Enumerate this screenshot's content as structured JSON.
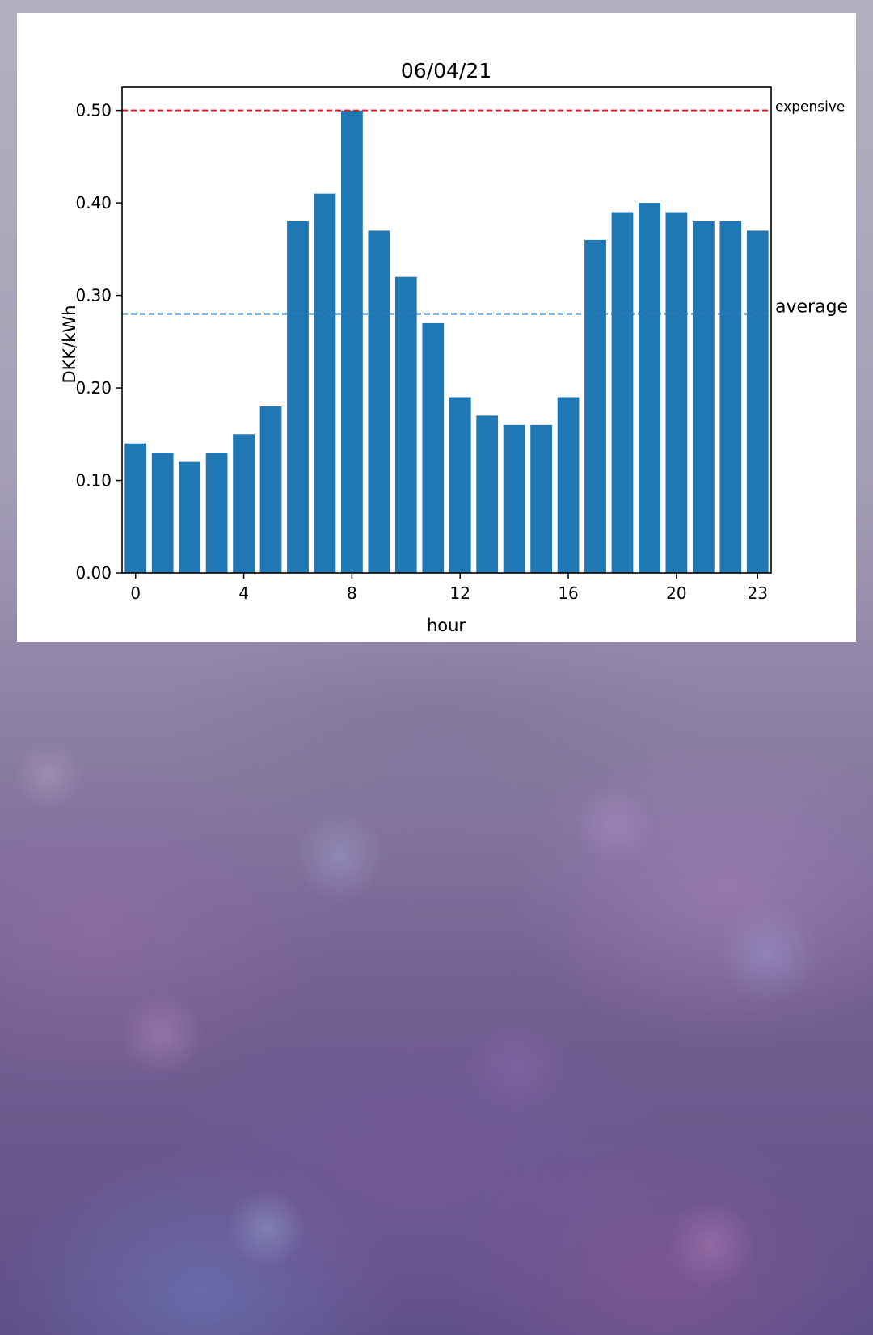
{
  "chart_data": {
    "type": "bar",
    "title": "06/04/21",
    "xlabel": "hour",
    "ylabel": "DKK/kWh",
    "x": [
      0,
      1,
      2,
      3,
      4,
      5,
      6,
      7,
      8,
      9,
      10,
      11,
      12,
      13,
      14,
      15,
      16,
      17,
      18,
      19,
      20,
      21,
      22,
      23
    ],
    "values": [
      0.14,
      0.13,
      0.12,
      0.13,
      0.15,
      0.18,
      0.38,
      0.41,
      0.5,
      0.37,
      0.32,
      0.27,
      0.19,
      0.17,
      0.16,
      0.16,
      0.19,
      0.36,
      0.39,
      0.4,
      0.39,
      0.38,
      0.38,
      0.37
    ],
    "xticks": [
      "0",
      "4",
      "8",
      "12",
      "16",
      "20",
      "23"
    ],
    "xtick_values": [
      0,
      4,
      8,
      12,
      16,
      20,
      23
    ],
    "yticks": [
      "0.00",
      "0.10",
      "0.20",
      "0.30",
      "0.40",
      "0.50"
    ],
    "ytick_values": [
      0.0,
      0.1,
      0.2,
      0.3,
      0.4,
      0.5
    ],
    "ylim": [
      0,
      0.525
    ],
    "xlim": [
      -0.5,
      23.5
    ],
    "bar_color": "#1f77b4",
    "grid": false,
    "reference_lines": [
      {
        "label": "expensive",
        "value": 0.5,
        "color": "#e41a1c",
        "style": "dashed"
      },
      {
        "label": "average",
        "value": 0.28,
        "color": "#2c7bb6",
        "style": "dashed"
      }
    ]
  }
}
